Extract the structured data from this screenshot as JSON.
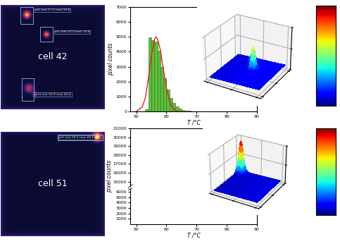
{
  "chart_data": [
    {
      "type": "histogram",
      "x_label": "T /°C",
      "y_label": "pixel counts",
      "bins": [
        53,
        54,
        55,
        56,
        57,
        58,
        59,
        60,
        61,
        62,
        63,
        64,
        65,
        66,
        67,
        68,
        69,
        70
      ],
      "counts": [
        150,
        4950,
        4800,
        4700,
        4050,
        3000,
        2200,
        1450,
        900,
        550,
        320,
        180,
        100,
        60,
        30,
        15,
        8
      ],
      "color": "#5cbf3a",
      "fit_curve": {
        "color": "#e8202a",
        "x": [
          50,
          52,
          53,
          54,
          55,
          56,
          56.5,
          57,
          58,
          59,
          60,
          61,
          62,
          63,
          64
        ],
        "values": [
          0,
          300,
          900,
          2200,
          3700,
          4800,
          5000,
          4900,
          4100,
          2800,
          1600,
          700,
          250,
          60,
          0
        ]
      },
      "xlim": [
        48,
        90
      ],
      "xticks": [
        50,
        60,
        70,
        80,
        90
      ],
      "ylim": [
        0,
        7000
      ],
      "yticks": [
        0,
        1000,
        2000,
        3000,
        4000,
        5000,
        6000,
        7000
      ]
    },
    {
      "type": "histogram",
      "x_label": "T /°C",
      "y_label": "pixel counts",
      "xlim": [
        48,
        90
      ],
      "xticks": [
        50,
        60,
        70,
        80,
        90
      ],
      "ylim": [
        0,
        21000
      ],
      "y_break": [
        6500,
        14500
      ],
      "yticks": [
        1000,
        2000,
        3000,
        4000,
        5000,
        6000,
        15000,
        16000,
        17000,
        18000,
        19000,
        20000,
        21000
      ]
    }
  ],
  "thermal_images": [
    {
      "label": "cell 42",
      "regions": [
        "ar1 min 57.2 max 93.8",
        "ar2 min 55.0 max 74.8",
        "ar4 min 54.8 max 64.4"
      ]
    },
    {
      "label": "cell 51",
      "regions": [
        "ar1 min 59.2 max 83.0"
      ]
    }
  ]
}
